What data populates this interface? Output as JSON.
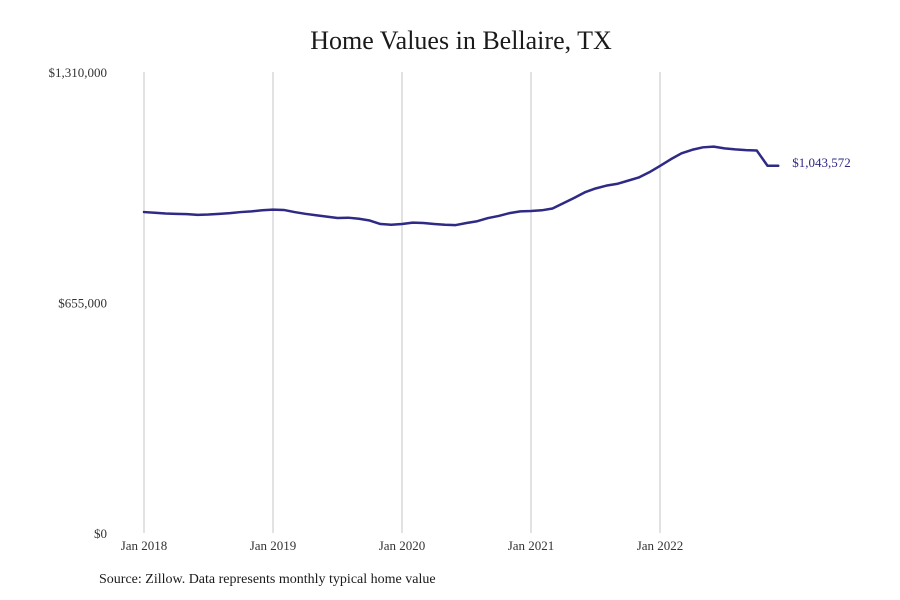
{
  "chart_data": {
    "type": "line",
    "title": "Home Values in Bellaire, TX",
    "source": "Source: Zillow. Data represents monthly typical home value",
    "xlabel": "",
    "ylabel": "",
    "ylim": [
      0,
      1310000
    ],
    "y_ticks": [
      0,
      655000,
      1310000
    ],
    "y_tick_labels": [
      "$0",
      "$655,000",
      "$1,310,000"
    ],
    "x_ticks": [
      "2018-01",
      "2019-01",
      "2020-01",
      "2021-01",
      "2022-01"
    ],
    "x_tick_labels": [
      "Jan 2018",
      "Jan 2019",
      "Jan 2020",
      "Jan 2021",
      "Jan 2022"
    ],
    "grid": "vertical",
    "end_label": "$1,043,572",
    "line_color": "#2e2a85",
    "series": [
      {
        "x": [
          "2018-01",
          "2018-02",
          "2018-03",
          "2018-04",
          "2018-05",
          "2018-06",
          "2018-07",
          "2018-08",
          "2018-09",
          "2018-10",
          "2018-11",
          "2018-12",
          "2019-01",
          "2019-02",
          "2019-03",
          "2019-04",
          "2019-05",
          "2019-06",
          "2019-07",
          "2019-08",
          "2019-09",
          "2019-10",
          "2019-11",
          "2019-12",
          "2020-01",
          "2020-02",
          "2020-03",
          "2020-04",
          "2020-05",
          "2020-06",
          "2020-07",
          "2020-08",
          "2020-09",
          "2020-10",
          "2020-11",
          "2020-12",
          "2021-01",
          "2021-02",
          "2021-03",
          "2021-04",
          "2021-05",
          "2021-06",
          "2021-07",
          "2021-08",
          "2021-09",
          "2021-10",
          "2021-11",
          "2021-12",
          "2022-01",
          "2022-02",
          "2022-03",
          "2022-04",
          "2022-05",
          "2022-06",
          "2022-07",
          "2022-08",
          "2022-09",
          "2022-10",
          "2022-11",
          "2022-12"
        ],
        "values": [
          912000,
          910000,
          908000,
          907000,
          906000,
          904000,
          905000,
          907000,
          909000,
          912000,
          914000,
          917000,
          919000,
          918000,
          912000,
          907000,
          903000,
          899000,
          895000,
          896000,
          893000,
          888000,
          878000,
          876000,
          878000,
          882000,
          881000,
          878000,
          876000,
          875000,
          881000,
          886000,
          895000,
          901000,
          909000,
          914000,
          915000,
          917000,
          922000,
          937000,
          952000,
          968000,
          979000,
          987000,
          992000,
          1001000,
          1010000,
          1025000,
          1043000,
          1062000,
          1079000,
          1089000,
          1096000,
          1098000,
          1093000,
          1090000,
          1088000,
          1087000,
          1043572,
          1043572
        ]
      }
    ]
  }
}
